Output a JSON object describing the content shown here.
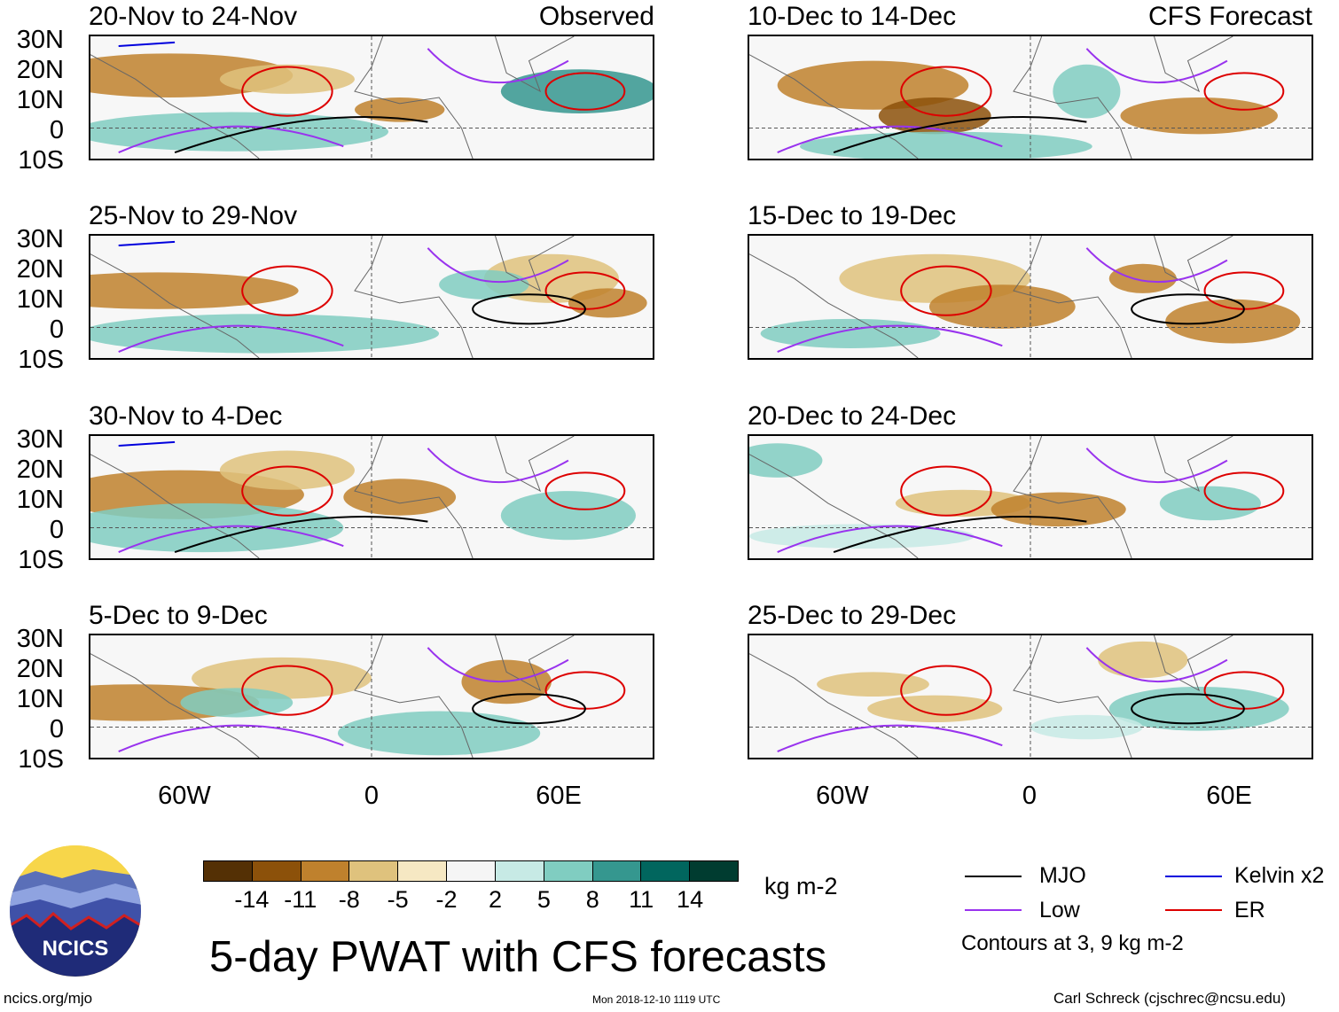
{
  "header": {
    "left_tag": "Observed",
    "right_tag": "CFS Forecast"
  },
  "left_panels": [
    {
      "title": "20-Nov to 24-Nov"
    },
    {
      "title": "25-Nov to 29-Nov"
    },
    {
      "title": "30-Nov to 4-Dec"
    },
    {
      "title": "5-Dec to 9-Dec"
    }
  ],
  "right_panels": [
    {
      "title": "10-Dec to 14-Dec"
    },
    {
      "title": "15-Dec to 19-Dec"
    },
    {
      "title": "20-Dec to 24-Dec"
    },
    {
      "title": "25-Dec to 29-Dec"
    }
  ],
  "y_axis_labels": [
    "30N",
    "20N",
    "10N",
    "0",
    "10S"
  ],
  "x_axis_labels": [
    "60W",
    "0",
    "60E"
  ],
  "colorbar": {
    "unit": "kg m-2",
    "ticks": [
      "-14",
      "-11",
      "-8",
      "-5",
      "-2",
      "2",
      "5",
      "8",
      "11",
      "14"
    ],
    "colors": [
      "#543005",
      "#8c510a",
      "#bf812d",
      "#dfc27d",
      "#f6e8c3",
      "#f5f5f5",
      "#c7eae5",
      "#80cdc1",
      "#35978f",
      "#01665e",
      "#003c30"
    ]
  },
  "legend": {
    "items": [
      {
        "label": "MJO",
        "color": "#000000"
      },
      {
        "label": "Kelvin x2",
        "color": "#0000dd"
      },
      {
        "label": "Low",
        "color": "#9933ee"
      },
      {
        "label": "ER",
        "color": "#dd0000"
      }
    ],
    "note": "Contours at 3, 9 kg m-2"
  },
  "main_title": "5-day PWAT with CFS forecasts",
  "footer": {
    "left": "ncics.org/mjo",
    "center": "Mon 2018-12-10 1119 UTC",
    "right": "Carl Schreck (cjschrec@ncsu.edu)"
  },
  "logo_text": "NCICS"
}
